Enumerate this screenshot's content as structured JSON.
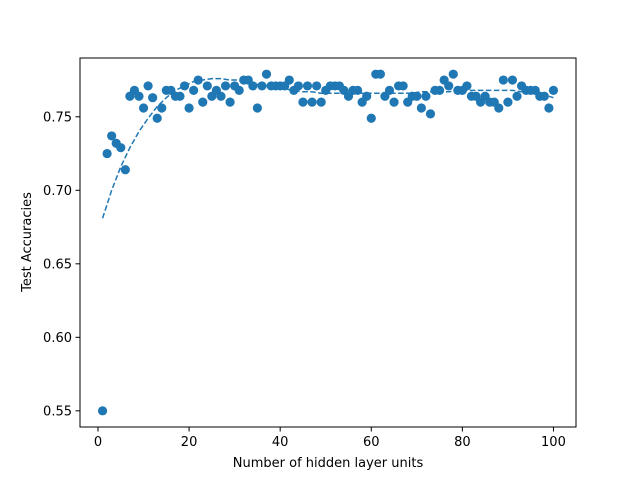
{
  "chart_data": {
    "type": "scatter",
    "title": "",
    "xlabel": "Number of hidden layer units",
    "ylabel": "Test Accuracies",
    "xlim": [
      -3.95,
      104.95
    ],
    "ylim": [
      0.539,
      0.79
    ],
    "x_ticks": [
      0,
      20,
      40,
      60,
      80,
      100
    ],
    "y_ticks": [
      0.55,
      0.6,
      0.65,
      0.7,
      0.75
    ],
    "x_tick_labels": [
      "0",
      "20",
      "40",
      "60",
      "80",
      "100"
    ],
    "y_tick_labels": [
      "0.55",
      "0.60",
      "0.65",
      "0.70",
      "0.75"
    ],
    "grid": false,
    "colors": {
      "points": "#1f77b4",
      "trend": "#1f77b4"
    },
    "series": [
      {
        "kind": "points",
        "x": [
          1,
          2,
          3,
          4,
          5,
          6,
          7,
          8,
          9,
          10,
          11,
          12,
          13,
          14,
          15,
          16,
          17,
          18,
          19,
          20,
          21,
          22,
          23,
          24,
          25,
          26,
          27,
          28,
          29,
          30,
          31,
          32,
          33,
          34,
          35,
          36,
          37,
          38,
          39,
          40,
          41,
          42,
          43,
          44,
          45,
          46,
          47,
          48,
          49,
          50,
          51,
          52,
          53,
          54,
          55,
          56,
          57,
          58,
          59,
          60,
          61,
          62,
          63,
          64,
          65,
          66,
          67,
          68,
          69,
          70,
          71,
          72,
          73,
          74,
          75,
          76,
          77,
          78,
          79,
          80,
          81,
          82,
          83,
          84,
          85,
          86,
          87,
          88,
          89,
          90,
          91,
          92,
          93,
          94,
          95,
          96,
          97,
          98,
          99,
          100
        ],
        "y": [
          0.55,
          0.725,
          0.737,
          0.732,
          0.729,
          0.714,
          0.764,
          0.768,
          0.764,
          0.756,
          0.771,
          0.763,
          0.749,
          0.756,
          0.768,
          0.768,
          0.764,
          0.764,
          0.771,
          0.756,
          0.768,
          0.775,
          0.76,
          0.771,
          0.764,
          0.768,
          0.764,
          0.771,
          0.76,
          0.771,
          0.768,
          0.775,
          0.775,
          0.771,
          0.756,
          0.771,
          0.779,
          0.771,
          0.771,
          0.771,
          0.771,
          0.775,
          0.768,
          0.771,
          0.76,
          0.771,
          0.76,
          0.771,
          0.76,
          0.768,
          0.771,
          0.771,
          0.771,
          0.768,
          0.764,
          0.768,
          0.768,
          0.76,
          0.764,
          0.749,
          0.779,
          0.779,
          0.764,
          0.768,
          0.76,
          0.771,
          0.771,
          0.76,
          0.764,
          0.764,
          0.756,
          0.764,
          0.752,
          0.768,
          0.768,
          0.775,
          0.771,
          0.779,
          0.768,
          0.768,
          0.771,
          0.764,
          0.764,
          0.76,
          0.764,
          0.76,
          0.76,
          0.756,
          0.775,
          0.76,
          0.775,
          0.764,
          0.771,
          0.768,
          0.768,
          0.768,
          0.764,
          0.764,
          0.756,
          0.768
        ]
      },
      {
        "kind": "trend",
        "x": [
          1,
          3,
          5,
          7,
          9,
          11,
          13,
          15,
          17,
          19,
          21,
          23,
          25,
          27,
          29,
          31,
          33,
          35,
          37,
          39,
          41,
          43,
          45,
          47,
          49,
          51,
          53,
          55,
          57,
          59,
          61,
          63,
          65,
          67,
          69,
          71,
          73,
          75,
          77,
          79,
          81,
          83,
          85,
          87,
          89,
          91,
          93,
          95,
          97,
          99,
          100
        ],
        "y": [
          0.681,
          0.7,
          0.716,
          0.729,
          0.74,
          0.749,
          0.757,
          0.763,
          0.768,
          0.771,
          0.774,
          0.775,
          0.776,
          0.776,
          0.775,
          0.775,
          0.774,
          0.772,
          0.771,
          0.77,
          0.769,
          0.768,
          0.767,
          0.767,
          0.766,
          0.766,
          0.766,
          0.766,
          0.766,
          0.766,
          0.766,
          0.766,
          0.766,
          0.766,
          0.766,
          0.767,
          0.767,
          0.767,
          0.767,
          0.768,
          0.768,
          0.768,
          0.768,
          0.768,
          0.768,
          0.768,
          0.767,
          0.767,
          0.766,
          0.764,
          0.763
        ]
      }
    ]
  }
}
